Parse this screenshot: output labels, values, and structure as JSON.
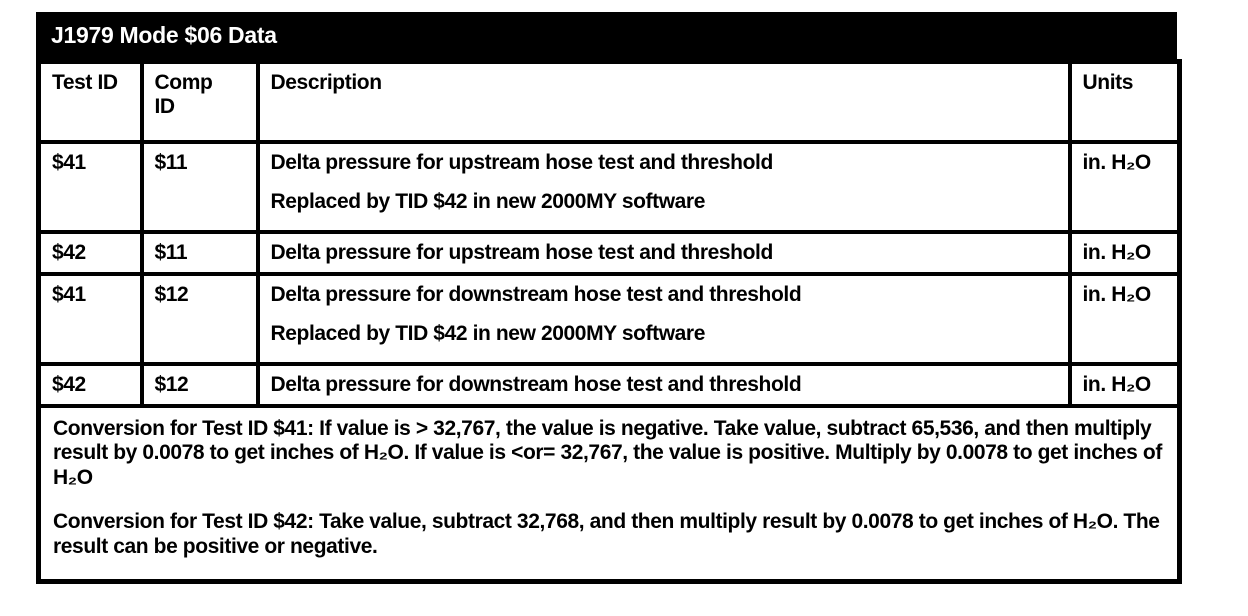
{
  "title": "J1979 Mode $06 Data",
  "table": {
    "columns": {
      "test_id": "Test ID",
      "comp_id": "Comp ID",
      "description": "Description",
      "units": "Units"
    },
    "rows": [
      {
        "test_id": "$41",
        "comp_id": "$11",
        "description_line1": "Delta pressure for upstream hose test and threshold",
        "description_line2": "Replaced by TID $42 in new 2000MY software",
        "units": "in. H₂O"
      },
      {
        "test_id": "$42",
        "comp_id": "$11",
        "description_line1": "Delta pressure for upstream hose test and threshold",
        "units": "in. H₂O"
      },
      {
        "test_id": "$41",
        "comp_id": "$12",
        "description_line1": "Delta pressure for downstream hose test and threshold",
        "description_line2": "Replaced by TID $42 in new 2000MY software",
        "units": "in. H₂O"
      },
      {
        "test_id": "$42",
        "comp_id": "$12",
        "description_line1": "Delta pressure for downstream hose test and threshold",
        "units": "in. H₂O"
      }
    ],
    "notes": [
      "Conversion for Test ID $41: If value is > 32,767, the value is negative. Take value, subtract 65,536, and then multiply result by 0.0078 to get inches of H₂O. If value is <or= 32,767, the value is positive. Multiply by 0.0078 to get inches of H₂O",
      "Conversion for Test ID $42: Take value, subtract 32,768, and then multiply result by 0.0078 to get inches of H₂O. The result can be positive or negative."
    ]
  },
  "colors": {
    "ink": "#000000",
    "paper": "#ffffff",
    "title_bg": "#000000",
    "title_fg": "#ffffff"
  }
}
